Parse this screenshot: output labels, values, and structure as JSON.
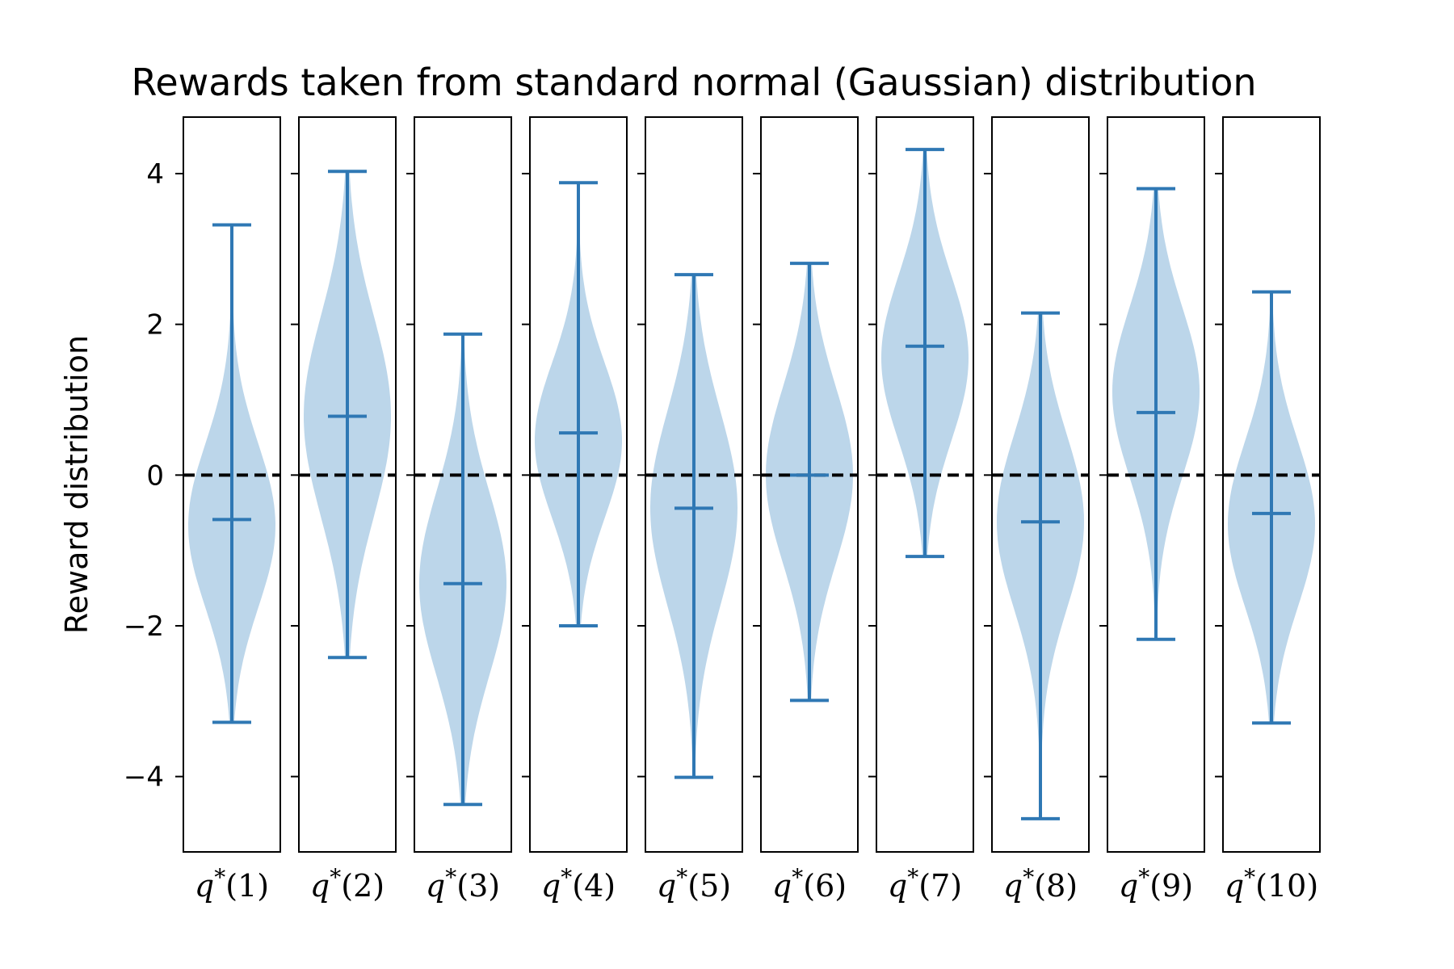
{
  "chart_data": {
    "type": "violin",
    "title": "Rewards taken from standard normal (Gaussian) distribution",
    "xlabel": "",
    "ylabel": "Reward distribution",
    "ylim": [
      -5,
      4.75
    ],
    "yticks": [
      4,
      2,
      0,
      -2,
      -4
    ],
    "ytick_labels": [
      "4",
      "2",
      "0",
      "−2",
      "−4"
    ],
    "reference_line": {
      "y": 0,
      "style": "dashed",
      "color": "#000000"
    },
    "colors": {
      "body": "#bcd6ea",
      "line": "#2f78b4"
    },
    "categories": [
      {
        "label_symbol": "q",
        "label_sup": "*",
        "label_arg": "(1)"
      },
      {
        "label_symbol": "q",
        "label_sup": "*",
        "label_arg": "(2)"
      },
      {
        "label_symbol": "q",
        "label_sup": "*",
        "label_arg": "(3)"
      },
      {
        "label_symbol": "q",
        "label_sup": "*",
        "label_arg": "(4)"
      },
      {
        "label_symbol": "q",
        "label_sup": "*",
        "label_arg": "(5)"
      },
      {
        "label_symbol": "q",
        "label_sup": "*",
        "label_arg": "(6)"
      },
      {
        "label_symbol": "q",
        "label_sup": "*",
        "label_arg": "(7)"
      },
      {
        "label_symbol": "q",
        "label_sup": "*",
        "label_arg": "(8)"
      },
      {
        "label_symbol": "q",
        "label_sup": "*",
        "label_arg": "(9)"
      },
      {
        "label_symbol": "q",
        "label_sup": "*",
        "label_arg": "(10)"
      }
    ],
    "series": [
      {
        "min": -3.28,
        "max": 3.32,
        "mean": -0.59,
        "density_center": -0.67
      },
      {
        "min": -2.42,
        "max": 4.03,
        "mean": 0.78,
        "density_center": 0.78
      },
      {
        "min": -4.37,
        "max": 1.87,
        "mean": -1.44,
        "density_center": -1.44
      },
      {
        "min": -2.0,
        "max": 3.88,
        "mean": 0.56,
        "density_center": 0.46
      },
      {
        "min": -4.01,
        "max": 2.66,
        "mean": -0.44,
        "density_center": -0.44
      },
      {
        "min": -2.99,
        "max": 2.81,
        "mean": 0.0,
        "density_center": 0.0
      },
      {
        "min": -1.08,
        "max": 4.32,
        "mean": 1.71,
        "density_center": 1.55
      },
      {
        "min": -4.56,
        "max": 2.15,
        "mean": -0.62,
        "density_center": -0.62
      },
      {
        "min": -2.18,
        "max": 3.8,
        "mean": 0.83,
        "density_center": 1.1
      },
      {
        "min": -3.29,
        "max": 2.43,
        "mean": -0.51,
        "density_center": -0.65
      }
    ]
  }
}
